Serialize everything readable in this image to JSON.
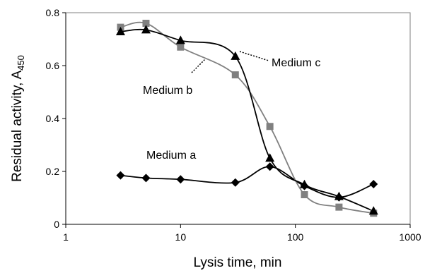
{
  "chart_data": {
    "type": "scatter",
    "xlabel": "Lysis time, min",
    "ylabel": "Residual activity, A",
    "ylabel_subscript": "450",
    "xscale": "log",
    "xlim": [
      1,
      1000
    ],
    "ylim": [
      0,
      0.8
    ],
    "grid": false,
    "legend": "none",
    "x_ticks": [
      1,
      10,
      100,
      1000
    ],
    "x_tick_labels": [
      "1",
      "10",
      "100",
      "1000"
    ],
    "y_ticks": [
      0,
      0.2,
      0.4,
      0.6,
      0.8
    ],
    "y_tick_labels": [
      "0",
      "0.2",
      "0.4",
      "0.6",
      "0.8"
    ],
    "series": [
      {
        "name": "Medium a",
        "marker": "diamond",
        "color": "#000000",
        "x": [
          3,
          5,
          10,
          30,
          60,
          120,
          240,
          480
        ],
        "y": [
          0.185,
          0.175,
          0.17,
          0.158,
          0.218,
          0.145,
          0.102,
          0.152
        ]
      },
      {
        "name": "Medium b",
        "marker": "square",
        "color": "#808080",
        "x": [
          3,
          5,
          10,
          30,
          60,
          120,
          240,
          480
        ],
        "y": [
          0.745,
          0.76,
          0.67,
          0.565,
          0.37,
          0.112,
          0.065,
          0.042
        ]
      },
      {
        "name": "Medium c",
        "marker": "triangle",
        "color": "#000000",
        "x": [
          3,
          5,
          10,
          30,
          60,
          120,
          240,
          480
        ],
        "y": [
          0.728,
          0.735,
          0.695,
          0.635,
          0.25,
          0.15,
          0.105,
          0.05
        ]
      }
    ]
  }
}
